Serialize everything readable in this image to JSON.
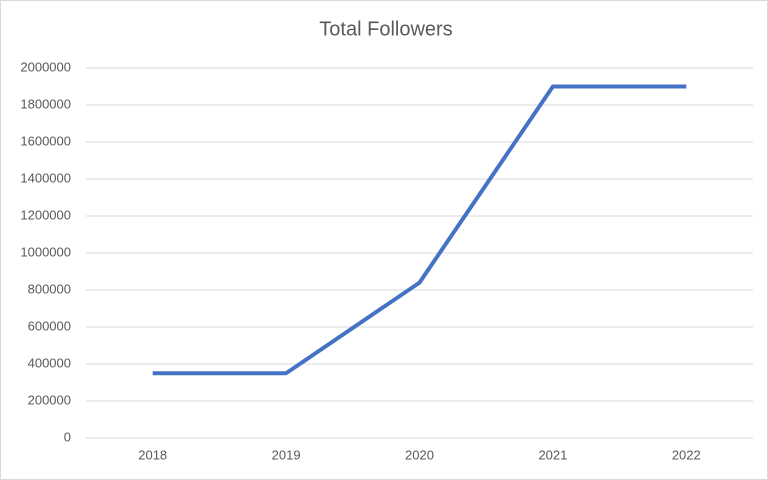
{
  "chart_data": {
    "type": "line",
    "title": "Total Followers",
    "categories": [
      "2018",
      "2019",
      "2020",
      "2021",
      "2022"
    ],
    "series": [
      {
        "name": "Total Followers",
        "color": "#4472c4",
        "values": [
          350000,
          350000,
          840000,
          1900000,
          1900000
        ]
      }
    ],
    "ylim": [
      0,
      2000000
    ],
    "yticks": [
      0,
      200000,
      400000,
      600000,
      800000,
      1000000,
      1200000,
      1400000,
      1600000,
      1800000,
      2000000
    ],
    "grid": true
  }
}
